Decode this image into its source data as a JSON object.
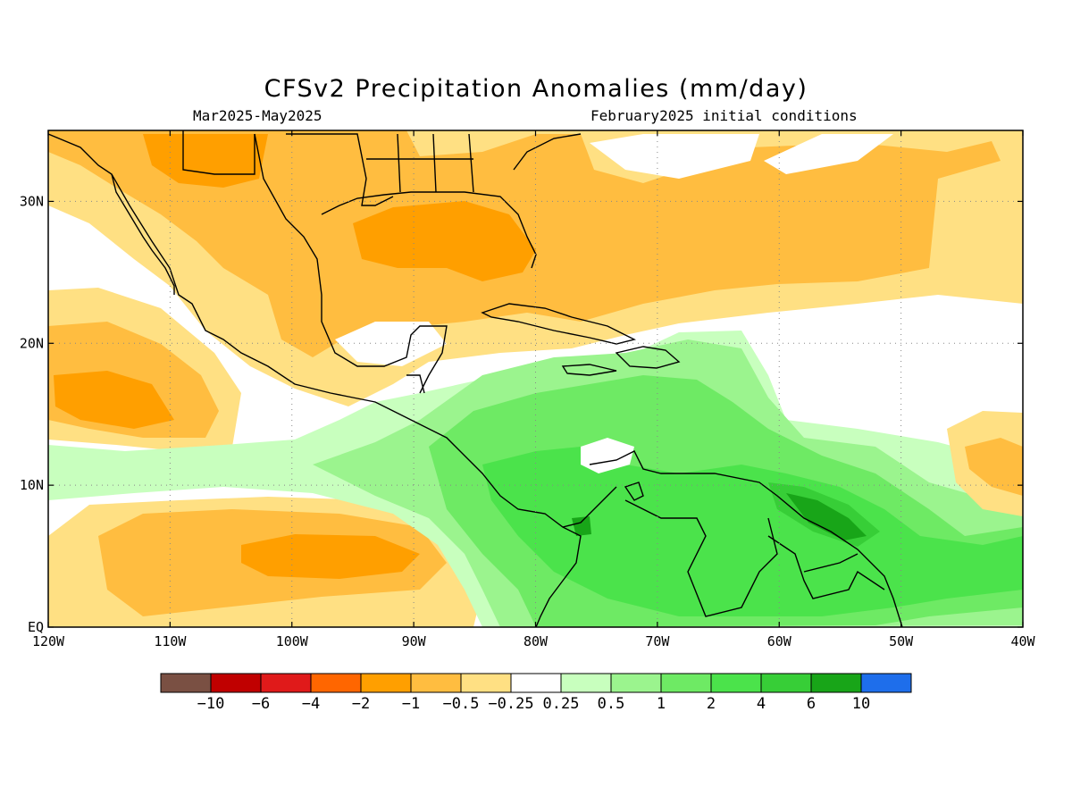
{
  "header": {
    "title": "CFSv2 Precipitation Anomalies (mm/day)",
    "period": "Mar2025-May2025",
    "init": "February2025 initial conditions"
  },
  "axes": {
    "lon_labels": [
      {
        "lon": -120,
        "text": "120W"
      },
      {
        "lon": -110,
        "text": "110W"
      },
      {
        "lon": -100,
        "text": "100W"
      },
      {
        "lon": -90,
        "text": "90W"
      },
      {
        "lon": -80,
        "text": "80W"
      },
      {
        "lon": -70,
        "text": "70W"
      },
      {
        "lon": -60,
        "text": "60W"
      },
      {
        "lon": -50,
        "text": "50W"
      },
      {
        "lon": -40,
        "text": "40W"
      }
    ],
    "lat_labels": [
      {
        "lat": 30,
        "text": "30N"
      },
      {
        "lat": 20,
        "text": "20N"
      },
      {
        "lat": 10,
        "text": "10N"
      },
      {
        "lat": 0,
        "text": "EQ"
      }
    ],
    "lon_range": [
      -120,
      -40
    ],
    "lat_range": [
      0,
      35
    ],
    "grid": "dotted"
  },
  "colorbar": {
    "colors": [
      "#7a5043",
      "#c00000",
      "#e01a1a",
      "#ff6600",
      "#ff9f00",
      "#ffbd40",
      "#ffe083",
      "#ffffff",
      "#c8ffbe",
      "#9bf48e",
      "#6eea64",
      "#4be34b",
      "#37ce37",
      "#18a518",
      "#1e6eeb"
    ],
    "labels": [
      "−10",
      "−6",
      "−4",
      "−2",
      "−1",
      "−0.5",
      "−0.25",
      "0.25",
      "0.5",
      "1",
      "2",
      "4",
      "6",
      "10"
    ]
  },
  "colors": {
    "orange_strong": "#ff9f00",
    "orange": "#ffbd40",
    "yellow": "#ffe083",
    "green_light": "#c8ffbe",
    "green_1": "#9bf48e",
    "green_2": "#6eea64",
    "green_4": "#4be34b",
    "green_6": "#37ce37",
    "green_10": "#18a518"
  }
}
